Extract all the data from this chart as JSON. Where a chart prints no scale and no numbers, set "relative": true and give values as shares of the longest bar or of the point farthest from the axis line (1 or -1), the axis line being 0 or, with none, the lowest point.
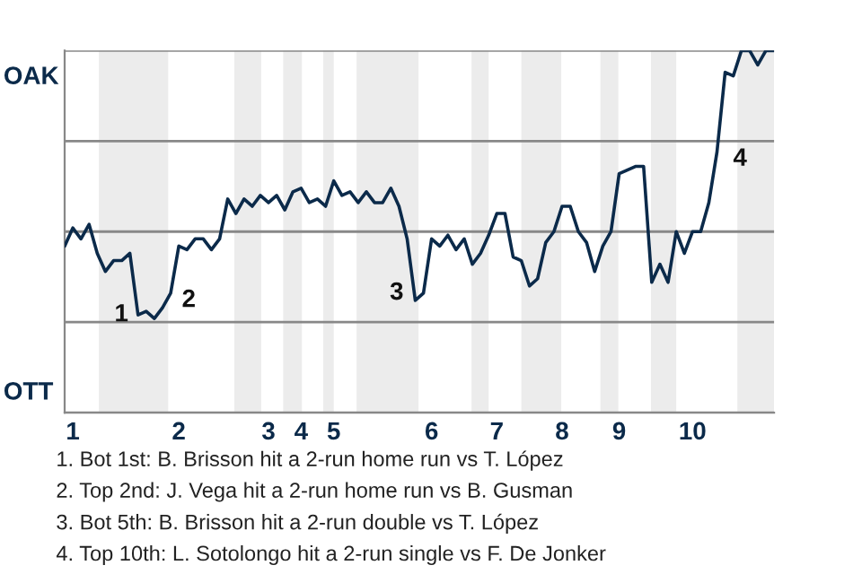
{
  "chart_data": {
    "type": "line",
    "relative": true,
    "categories": [
      null,
      "1",
      null,
      null,
      null,
      null,
      null,
      null,
      null,
      null,
      null,
      null,
      null,
      null,
      "2",
      null,
      null,
      null,
      null,
      null,
      null,
      null,
      null,
      null,
      null,
      "3",
      null,
      null,
      null,
      "4",
      null,
      null,
      null,
      "5",
      null,
      null,
      null,
      null,
      null,
      null,
      null,
      null,
      null,
      null,
      null,
      "6",
      null,
      null,
      null,
      null,
      null,
      null,
      null,
      "7",
      null,
      null,
      null,
      null,
      null,
      null,
      null,
      "8",
      null,
      null,
      null,
      null,
      null,
      null,
      "9",
      null,
      null,
      null,
      null,
      null,
      null,
      null,
      null,
      "10",
      null,
      null,
      null,
      null,
      null,
      null,
      null,
      null,
      null,
      null
    ],
    "series": [
      {
        "color": "#0b2a4a",
        "values": [
          0.46,
          0.51,
          0.48,
          0.52,
          0.44,
          0.39,
          0.42,
          0.42,
          0.44,
          0.27,
          0.28,
          0.26,
          0.29,
          0.33,
          0.46,
          0.45,
          0.48,
          0.48,
          0.45,
          0.48,
          0.59,
          0.55,
          0.59,
          0.57,
          0.6,
          0.58,
          0.6,
          0.56,
          0.61,
          0.62,
          0.58,
          0.59,
          0.57,
          0.64,
          0.6,
          0.61,
          0.58,
          0.61,
          0.58,
          0.58,
          0.62,
          0.57,
          0.48,
          0.31,
          0.33,
          0.48,
          0.46,
          0.49,
          0.45,
          0.48,
          0.41,
          0.44,
          0.49,
          0.55,
          0.55,
          0.43,
          0.42,
          0.35,
          0.37,
          0.47,
          0.5,
          0.57,
          0.57,
          0.5,
          0.47,
          0.39,
          0.46,
          0.5,
          0.66,
          0.67,
          0.68,
          0.68,
          0.36,
          0.41,
          0.36,
          0.5,
          0.44,
          0.5,
          0.5,
          0.58,
          0.72,
          0.94,
          0.93,
          1.0,
          1.0,
          0.96,
          1.0,
          1.0
        ]
      }
    ],
    "grid": "y",
    "annotations": [
      "OAK",
      "OTT",
      "1",
      "2",
      "3",
      "4",
      "1. Bot 1st: B. Brisson hit a 2-run home run vs T. López",
      "2. Top 2nd: J. Vega hit a 2-run home run vs B. Gusman",
      "3. Bot 5th: B. Brisson hit a 2-run double vs T. López",
      "4. Top 10th: L. Sotolongo hit a 2-run single vs F. De Jonker"
    ],
    "legend": false
  }
}
